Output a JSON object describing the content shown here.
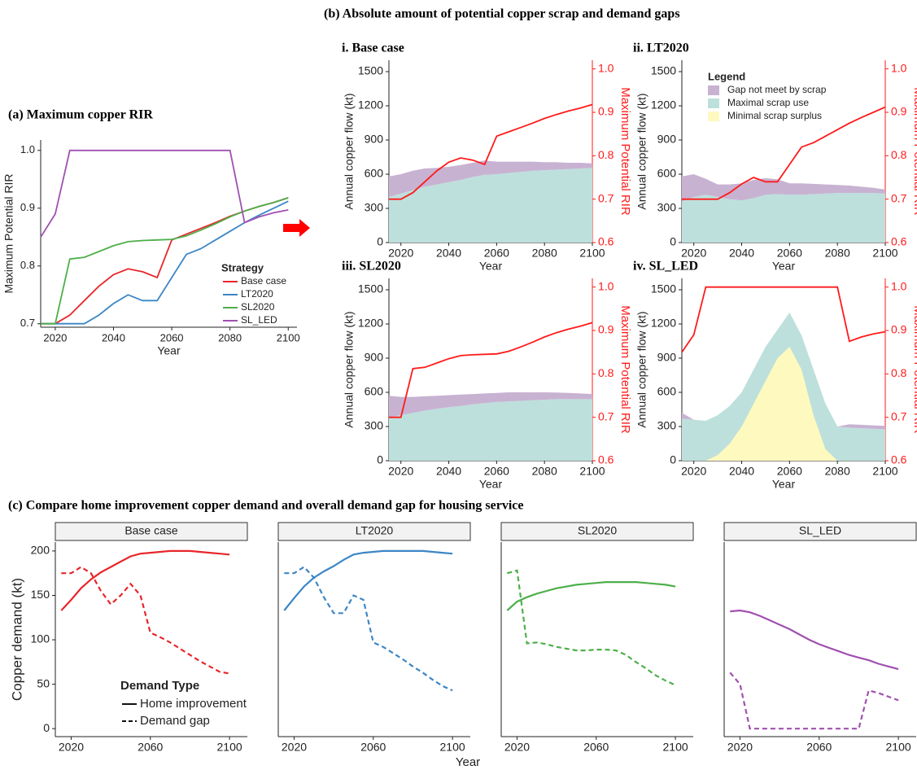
{
  "section_b_title": "(b) Absolute amount of potential copper scrap and demand gaps",
  "section_c_title": "(c) Compare home improvement copper demand and overall demand gap for housing service",
  "section_c_x_label": "Year",
  "chart_data": [
    {
      "type": "line",
      "title": "(a) Maximum copper RIR",
      "x_label": "Year",
      "y_label": "Maximum Potential RIR",
      "xlim": [
        2015,
        2103
      ],
      "ylim": [
        0.694,
        1.018
      ],
      "xticks": [
        2020,
        2040,
        2060,
        2080,
        2100
      ],
      "yticks": [
        0.7,
        0.8,
        0.9,
        {
          "value": 1,
          "label": "1.0"
        }
      ],
      "legend_title": "Strategy",
      "x": [
        2015,
        2020,
        2025,
        2030,
        2035,
        2040,
        2045,
        2050,
        2055,
        2060,
        2065,
        2070,
        2075,
        2080,
        2085,
        2090,
        2095,
        2100
      ],
      "series": [
        {
          "name": "Base case",
          "color": "#e8262a",
          "values": [
            0.7,
            0.7,
            0.715,
            0.74,
            0.765,
            0.785,
            0.795,
            0.79,
            0.78,
            0.845,
            0.855,
            0.865,
            0.875,
            0.886,
            0.895,
            0.903,
            0.91,
            0.918
          ]
        },
        {
          "name": "LT2020",
          "color": "#3c86c6",
          "values": [
            0.7,
            0.7,
            0.7,
            0.7,
            0.715,
            0.735,
            0.75,
            0.74,
            0.74,
            0.78,
            0.82,
            0.83,
            0.845,
            0.86,
            0.875,
            0.888,
            0.9,
            0.912
          ]
        },
        {
          "name": "SL2020",
          "color": "#4daf4a",
          "values": [
            0.7,
            0.7,
            0.812,
            0.815,
            0.825,
            0.835,
            0.842,
            0.844,
            0.845,
            0.846,
            0.852,
            0.862,
            0.873,
            0.885,
            0.895,
            0.903,
            0.91,
            0.918
          ]
        },
        {
          "name": "SL_LED",
          "color": "#a050b0",
          "values": [
            0.85,
            0.89,
            1,
            1,
            1,
            1,
            1,
            1,
            1,
            1,
            1,
            1,
            1,
            1,
            0.875,
            0.885,
            0.892,
            0.897
          ]
        }
      ]
    },
    {
      "type": "area",
      "title": "i. Base case",
      "x_label": "Year",
      "y_label": "Annual copper flow (kt)",
      "y2_label": "Maximum Potential RIR",
      "xlim": [
        2015,
        2100
      ],
      "ylim": [
        0,
        1600
      ],
      "y2lim": [
        0.6,
        1.02
      ],
      "xticks": [
        2020,
        2040,
        2060,
        2080,
        2100
      ],
      "yticks": [
        0,
        300,
        600,
        900,
        1200,
        1500
      ],
      "y2ticks": [
        0.6,
        0.7,
        0.8,
        0.9,
        {
          "value": 1,
          "label": "1.0"
        }
      ],
      "x": [
        2015,
        2020,
        2025,
        2030,
        2035,
        2040,
        2045,
        2050,
        2055,
        2060,
        2065,
        2070,
        2075,
        2080,
        2085,
        2090,
        2095,
        2100
      ],
      "series": [
        {
          "color": "#c8b2d2",
          "values": [
            180,
            170,
            170,
            160,
            145,
            135,
            130,
            125,
            125,
            110,
            100,
            90,
            80,
            70,
            65,
            55,
            50,
            40
          ]
        },
        {
          "color": "#bde0dc",
          "values": [
            400,
            430,
            460,
            490,
            510,
            530,
            550,
            575,
            595,
            600,
            610,
            620,
            630,
            635,
            640,
            645,
            650,
            655
          ]
        },
        {
          "color": "#fdf9bf",
          "values": [
            0,
            0,
            0,
            0,
            0,
            0,
            0,
            0,
            0,
            0,
            0,
            0,
            0,
            0,
            0,
            0,
            0,
            0
          ]
        },
        {
          "color": "#ff1a1a",
          "axis": "y2",
          "values": [
            0.7,
            0.7,
            0.715,
            0.74,
            0.765,
            0.785,
            0.795,
            0.79,
            0.78,
            0.845,
            0.855,
            0.865,
            0.875,
            0.886,
            0.895,
            0.903,
            0.91,
            0.918
          ]
        }
      ]
    },
    {
      "type": "area",
      "title": "ii. LT2020",
      "x_label": "Year",
      "y_label": "Annual copper flow (kt)",
      "y2_label": "Maximum Potential RIR",
      "xlim": [
        2015,
        2100
      ],
      "ylim": [
        0,
        1600
      ],
      "y2lim": [
        0.6,
        1.02
      ],
      "xticks": [
        2020,
        2040,
        2060,
        2080,
        2100
      ],
      "yticks": [
        0,
        300,
        600,
        900,
        1200,
        1500
      ],
      "y2ticks": [
        0.6,
        0.7,
        0.8,
        0.9,
        {
          "value": 1,
          "label": "1.0"
        }
      ],
      "legend_title": "Legend",
      "x": [
        2015,
        2020,
        2025,
        2030,
        2035,
        2040,
        2045,
        2050,
        2055,
        2060,
        2065,
        2070,
        2075,
        2080,
        2085,
        2090,
        2095,
        2100
      ],
      "series": [
        {
          "name": "Gap not meet by scrap",
          "color": "#c8b2d2",
          "values": [
            220,
            200,
            140,
            110,
            130,
            150,
            160,
            145,
            130,
            100,
            100,
            90,
            80,
            70,
            65,
            55,
            45,
            35
          ]
        },
        {
          "name": "Maximal scrap use",
          "color": "#bde0dc",
          "values": [
            360,
            400,
            420,
            400,
            380,
            370,
            390,
            420,
            425,
            420,
            420,
            425,
            430,
            435,
            435,
            435,
            435,
            430
          ]
        },
        {
          "name": "Minimal scrap surplus",
          "color": "#fdf9bf",
          "values": [
            0,
            0,
            0,
            0,
            0,
            0,
            0,
            0,
            0,
            0,
            0,
            0,
            0,
            0,
            0,
            0,
            0,
            0
          ]
        },
        {
          "color": "#ff1a1a",
          "axis": "y2",
          "values": [
            0.7,
            0.7,
            0.7,
            0.7,
            0.715,
            0.735,
            0.75,
            0.74,
            0.74,
            0.78,
            0.82,
            0.83,
            0.845,
            0.86,
            0.875,
            0.888,
            0.9,
            0.912
          ]
        }
      ]
    },
    {
      "type": "area",
      "title": "iii. SL2020",
      "x_label": "Year",
      "y_label": "Annual copper flow (kt)",
      "y2_label": "Maximum Potential RIR",
      "xlim": [
        2015,
        2100
      ],
      "ylim": [
        0,
        1600
      ],
      "y2lim": [
        0.6,
        1.02
      ],
      "xticks": [
        2020,
        2040,
        2060,
        2080,
        2100
      ],
      "yticks": [
        0,
        300,
        600,
        900,
        1200,
        1500
      ],
      "y2ticks": [
        0.6,
        0.7,
        0.8,
        0.9,
        {
          "value": 1,
          "label": "1.0"
        }
      ],
      "x": [
        2015,
        2020,
        2025,
        2030,
        2035,
        2040,
        2045,
        2050,
        2055,
        2060,
        2065,
        2070,
        2075,
        2080,
        2085,
        2090,
        2095,
        2100
      ],
      "series": [
        {
          "color": "#c8b2d2",
          "values": [
            190,
            160,
            140,
            125,
            115,
            105,
            100,
            90,
            85,
            80,
            80,
            75,
            70,
            65,
            58,
            55,
            50,
            45
          ]
        },
        {
          "color": "#bde0dc",
          "values": [
            380,
            400,
            420,
            440,
            455,
            470,
            480,
            495,
            505,
            515,
            520,
            525,
            530,
            535,
            540,
            540,
            540,
            540
          ]
        },
        {
          "color": "#fdf9bf",
          "values": [
            0,
            0,
            0,
            0,
            0,
            0,
            0,
            0,
            0,
            0,
            0,
            0,
            0,
            0,
            0,
            0,
            0,
            0
          ]
        },
        {
          "color": "#ff1a1a",
          "axis": "y2",
          "values": [
            0.7,
            0.7,
            0.812,
            0.815,
            0.825,
            0.835,
            0.842,
            0.844,
            0.845,
            0.846,
            0.852,
            0.862,
            0.873,
            0.885,
            0.895,
            0.903,
            0.91,
            0.918
          ]
        }
      ]
    },
    {
      "type": "area",
      "title": "iv. SL_LED",
      "x_label": "Year",
      "y_label": "Annual copper flow (kt)",
      "y2_label": "Maximum Potential RIR",
      "xlim": [
        2015,
        2100
      ],
      "ylim": [
        0,
        1600
      ],
      "y2lim": [
        0.6,
        1.02
      ],
      "xticks": [
        2020,
        2040,
        2060,
        2080,
        2100
      ],
      "yticks": [
        0,
        300,
        600,
        900,
        1200,
        1500
      ],
      "y2ticks": [
        0.6,
        0.7,
        0.8,
        0.9,
        {
          "value": 1,
          "label": "1.0"
        }
      ],
      "x": [
        2015,
        2020,
        2025,
        2030,
        2035,
        2040,
        2045,
        2050,
        2055,
        2060,
        2065,
        2070,
        2075,
        2080,
        2085,
        2090,
        2095,
        2100
      ],
      "series": [
        {
          "color": "#c8b2d2",
          "values": [
            50,
            0,
            0,
            0,
            0,
            0,
            0,
            0,
            0,
            0,
            0,
            0,
            0,
            0,
            30,
            30,
            30,
            30
          ]
        },
        {
          "color": "#bde0dc",
          "values": [
            370,
            360,
            350,
            400,
            480,
            600,
            800,
            1000,
            1150,
            1300,
            1100,
            800,
            500,
            300,
            290,
            285,
            280,
            275
          ]
        },
        {
          "color": "#fdf9bf",
          "values": [
            0,
            0,
            0,
            50,
            150,
            300,
            500,
            700,
            900,
            1000,
            800,
            400,
            100,
            0,
            0,
            0,
            0,
            0
          ]
        },
        {
          "color": "#ff1a1a",
          "axis": "y2",
          "values": [
            0.85,
            0.89,
            1,
            1,
            1,
            1,
            1,
            1,
            1,
            1,
            1,
            1,
            1,
            1,
            0.875,
            0.885,
            0.892,
            0.897
          ]
        }
      ]
    },
    {
      "type": "line",
      "title": "Base case",
      "strip": true,
      "y_label": "Copper demand (kt)",
      "xlim": [
        2012,
        2109
      ],
      "ylim": [
        -9,
        210
      ],
      "xticks": [
        2020,
        2060,
        2100
      ],
      "yticks": [
        0,
        50,
        100,
        150,
        200
      ],
      "legend_title": "Demand Type",
      "x": [
        2015,
        2020,
        2025,
        2030,
        2035,
        2040,
        2045,
        2050,
        2055,
        2060,
        2065,
        2070,
        2075,
        2080,
        2085,
        2090,
        2095,
        2100
      ],
      "series": [
        {
          "name": "Home improvement",
          "color": "#e8262a",
          "values": [
            133,
            145,
            158,
            168,
            176,
            182,
            188,
            194,
            197,
            198,
            199,
            200,
            200,
            200,
            199,
            198,
            197,
            196
          ]
        },
        {
          "name": "Demand gap",
          "color": "#e8262a",
          "dash": true,
          "values": [
            175,
            175,
            182,
            175,
            155,
            140,
            150,
            163,
            150,
            108,
            103,
            97,
            90,
            83,
            76,
            70,
            64,
            62
          ]
        }
      ]
    },
    {
      "type": "line",
      "title": "LT2020",
      "strip": true,
      "xlim": [
        2012,
        2109
      ],
      "ylim": [
        -9,
        210
      ],
      "xticks": [
        2020,
        2060,
        2100
      ],
      "x": [
        2015,
        2020,
        2025,
        2030,
        2035,
        2040,
        2045,
        2050,
        2055,
        2060,
        2065,
        2070,
        2075,
        2080,
        2085,
        2090,
        2095,
        2100
      ],
      "series": [
        {
          "color": "#3c86c6",
          "values": [
            133,
            147,
            160,
            170,
            177,
            183,
            190,
            196,
            198,
            199,
            200,
            200,
            200,
            200,
            200,
            199,
            198,
            197
          ]
        },
        {
          "color": "#3c86c6",
          "dash": true,
          "values": [
            175,
            175,
            182,
            170,
            148,
            130,
            130,
            150,
            145,
            97,
            92,
            85,
            78,
            70,
            63,
            55,
            48,
            43
          ]
        }
      ]
    },
    {
      "type": "line",
      "title": "SL2020",
      "strip": true,
      "xlim": [
        2012,
        2109
      ],
      "ylim": [
        -9,
        210
      ],
      "xticks": [
        2020,
        2060,
        2100
      ],
      "x": [
        2015,
        2020,
        2025,
        2030,
        2035,
        2040,
        2045,
        2050,
        2055,
        2060,
        2065,
        2070,
        2075,
        2080,
        2085,
        2090,
        2095,
        2100
      ],
      "series": [
        {
          "color": "#4daf4a",
          "values": [
            133,
            143,
            148,
            152,
            155,
            158,
            160,
            162,
            163,
            164,
            165,
            165,
            165,
            165,
            164,
            163,
            162,
            160
          ]
        },
        {
          "color": "#4daf4a",
          "dash": true,
          "values": [
            175,
            178,
            96,
            97,
            95,
            92,
            90,
            88,
            88,
            89,
            89,
            88,
            83,
            75,
            68,
            60,
            54,
            49
          ]
        }
      ]
    },
    {
      "type": "line",
      "title": "SL_LED",
      "strip": true,
      "xlim": [
        2012,
        2109
      ],
      "ylim": [
        -9,
        210
      ],
      "xticks": [
        2020,
        2060,
        2100
      ],
      "x": [
        2015,
        2020,
        2025,
        2030,
        2035,
        2040,
        2045,
        2050,
        2055,
        2060,
        2065,
        2070,
        2075,
        2080,
        2085,
        2090,
        2095,
        2100
      ],
      "series": [
        {
          "color": "#a050b0",
          "values": [
            132,
            133,
            131,
            127,
            122,
            117,
            112,
            106,
            100,
            95,
            91,
            87,
            83,
            80,
            77,
            73,
            70,
            67
          ]
        },
        {
          "color": "#a050b0",
          "dash": true,
          "values": [
            63,
            50,
            0,
            0,
            0,
            0,
            0,
            0,
            0,
            0,
            0,
            0,
            0,
            0,
            43,
            40,
            36,
            32
          ]
        }
      ]
    }
  ]
}
